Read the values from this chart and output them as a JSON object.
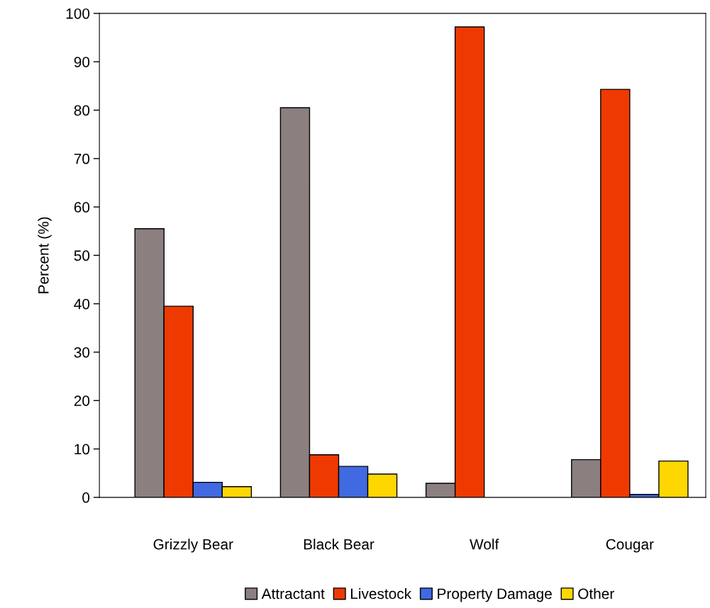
{
  "chart_data": {
    "type": "bar",
    "ylabel": "Percent (%)",
    "categories": [
      "Grizzly Bear",
      "Black Bear",
      "Wolf",
      "Cougar"
    ],
    "series": [
      {
        "name": "Attractant",
        "color": "#8b7f80",
        "values": [
          55.5,
          80.5,
          2.9,
          7.8
        ]
      },
      {
        "name": "Livestock",
        "color": "#ee3a00",
        "values": [
          39.5,
          8.8,
          97.2,
          84.3
        ]
      },
      {
        "name": "Property Damage",
        "color": "#4169e1",
        "values": [
          3.1,
          6.4,
          null,
          0.6
        ]
      },
      {
        "name": "Other",
        "color": "#ffd700",
        "values": [
          2.2,
          4.8,
          null,
          7.5
        ]
      }
    ],
    "ylim": [
      0,
      100
    ],
    "yticks": [
      0,
      10,
      20,
      30,
      40,
      50,
      60,
      70,
      80,
      90,
      100
    ],
    "grid": false,
    "legend": "bottom"
  }
}
